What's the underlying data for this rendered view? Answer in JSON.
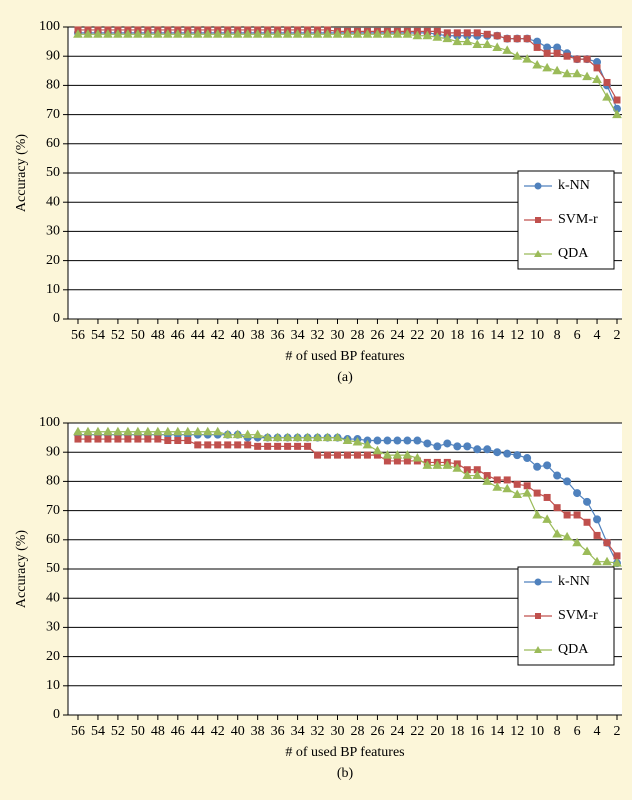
{
  "chart_data": [
    {
      "type": "line",
      "caption": "(a)",
      "ylabel": "Accuracy (%)",
      "xlabel": "# of used BP features",
      "x": [
        56,
        55,
        54,
        53,
        52,
        51,
        50,
        49,
        48,
        47,
        46,
        45,
        44,
        43,
        42,
        41,
        40,
        39,
        38,
        37,
        36,
        35,
        34,
        33,
        32,
        31,
        30,
        29,
        28,
        27,
        26,
        25,
        24,
        23,
        22,
        21,
        20,
        19,
        18,
        17,
        16,
        15,
        14,
        13,
        12,
        11,
        10,
        9,
        8,
        7,
        6,
        5,
        4,
        3,
        2
      ],
      "xlim": [
        57,
        1.5
      ],
      "xticks": [
        56,
        54,
        52,
        50,
        48,
        46,
        44,
        42,
        40,
        38,
        36,
        34,
        32,
        30,
        28,
        26,
        24,
        22,
        20,
        18,
        16,
        14,
        12,
        10,
        8,
        6,
        4,
        2
      ],
      "ylim": [
        0,
        100
      ],
      "yticks": [
        0,
        10,
        20,
        30,
        40,
        50,
        60,
        70,
        80,
        90,
        100
      ],
      "grid": true,
      "legend": "lower right",
      "series": [
        {
          "name": "k-NN",
          "color": "#4f81bd",
          "marker": "circle",
          "values": [
            98,
            98,
            98,
            98,
            98,
            98,
            98,
            98,
            98,
            98,
            98,
            98,
            98,
            98,
            98,
            98,
            98,
            98,
            98,
            98,
            98,
            98,
            98,
            98,
            98,
            98,
            98,
            98,
            98,
            98,
            98,
            98,
            98,
            98,
            98,
            98,
            97.5,
            97,
            97,
            97,
            97,
            97,
            97,
            96,
            96,
            96,
            95,
            93,
            93,
            91,
            89,
            89,
            88,
            80,
            72
          ]
        },
        {
          "name": "SVM-r",
          "color": "#c0504d",
          "marker": "square",
          "values": [
            99,
            99,
            99,
            99,
            99,
            99,
            99,
            99,
            99,
            99,
            99,
            99,
            99,
            99,
            99,
            99,
            99,
            99,
            99,
            99,
            99,
            99,
            99,
            99,
            99,
            99,
            98.5,
            98.5,
            98.5,
            98.5,
            98.5,
            98.5,
            98.5,
            98.5,
            98.5,
            98.5,
            98.5,
            98,
            98,
            98,
            98,
            97.5,
            97,
            96,
            96,
            96,
            93,
            91,
            91,
            90,
            89,
            89,
            86,
            81,
            75
          ]
        },
        {
          "name": "QDA",
          "color": "#9bbb59",
          "marker": "triangle",
          "values": [
            97.5,
            97.5,
            97.5,
            97.5,
            97.5,
            97.5,
            97.5,
            97.5,
            97.5,
            97.5,
            97.5,
            97.5,
            97.5,
            97.5,
            97.5,
            97.5,
            97.5,
            97.5,
            97.5,
            97.5,
            97.5,
            97.5,
            97.5,
            97.5,
            97.5,
            97.5,
            97.5,
            97.5,
            97.5,
            97.5,
            97.5,
            97.5,
            97.5,
            97.5,
            97,
            97,
            96.5,
            96,
            95,
            95,
            94,
            94,
            93,
            92,
            90,
            89,
            87,
            86,
            85,
            84,
            84,
            83,
            82,
            76,
            70
          ]
        }
      ]
    },
    {
      "type": "line",
      "caption": "(b)",
      "ylabel": "Accuracy (%)",
      "xlabel": "# of used BP features",
      "x": [
        56,
        55,
        54,
        53,
        52,
        51,
        50,
        49,
        48,
        47,
        46,
        45,
        44,
        43,
        42,
        41,
        40,
        39,
        38,
        37,
        36,
        35,
        34,
        33,
        32,
        31,
        30,
        29,
        28,
        27,
        26,
        25,
        24,
        23,
        22,
        21,
        20,
        19,
        18,
        17,
        16,
        15,
        14,
        13,
        12,
        11,
        10,
        9,
        8,
        7,
        6,
        5,
        4,
        3,
        2
      ],
      "xlim": [
        57,
        1.5
      ],
      "xticks": [
        56,
        54,
        52,
        50,
        48,
        46,
        44,
        42,
        40,
        38,
        36,
        34,
        32,
        30,
        28,
        26,
        24,
        22,
        20,
        18,
        16,
        14,
        12,
        10,
        8,
        6,
        4,
        2
      ],
      "ylim": [
        0,
        100
      ],
      "yticks": [
        0,
        10,
        20,
        30,
        40,
        50,
        60,
        70,
        80,
        90,
        100
      ],
      "grid": true,
      "legend": "lower right",
      "series": [
        {
          "name": "k-NN",
          "color": "#4f81bd",
          "marker": "circle",
          "values": [
            96,
            96,
            96,
            96,
            96,
            96,
            96,
            96,
            96,
            96,
            96,
            96,
            96,
            96,
            96,
            96,
            96,
            95,
            95,
            95,
            95,
            95,
            95,
            95,
            95,
            95,
            95,
            94.5,
            94.5,
            94,
            94,
            94,
            94,
            94,
            94,
            93,
            92,
            93,
            92,
            92,
            91,
            91,
            90,
            89.5,
            89,
            88,
            85,
            85.5,
            82,
            80,
            76,
            73,
            67,
            59,
            52
          ]
        },
        {
          "name": "SVM-r",
          "color": "#c0504d",
          "marker": "square",
          "values": [
            94.5,
            94.5,
            94.5,
            94.5,
            94.5,
            94.5,
            94.5,
            94.5,
            94.5,
            94,
            94,
            94,
            92.5,
            92.5,
            92.5,
            92.5,
            92.5,
            92.5,
            92,
            92,
            92,
            92,
            92,
            92,
            89,
            89,
            89,
            89,
            89,
            89,
            89,
            87,
            87,
            87,
            87,
            86.5,
            86.5,
            86.5,
            86,
            84,
            84,
            82,
            80.5,
            80.5,
            79,
            78.5,
            76,
            74.5,
            71,
            68.5,
            68.5,
            66,
            61.5,
            59,
            54.5
          ]
        },
        {
          "name": "QDA",
          "color": "#9bbb59",
          "marker": "triangle",
          "values": [
            97,
            97,
            97,
            97,
            97,
            97,
            97,
            97,
            97,
            97,
            97,
            97,
            97,
            97,
            97,
            96,
            96,
            96,
            96,
            95,
            95,
            95,
            95,
            95,
            95,
            95,
            95,
            94,
            93.5,
            92.5,
            90.5,
            89,
            89,
            89,
            88,
            85.5,
            85.5,
            85.5,
            84.5,
            82,
            82,
            80,
            78,
            77.5,
            75.5,
            76,
            68.5,
            67,
            62,
            61,
            59,
            56,
            52.5,
            52.5,
            52
          ]
        }
      ]
    }
  ]
}
